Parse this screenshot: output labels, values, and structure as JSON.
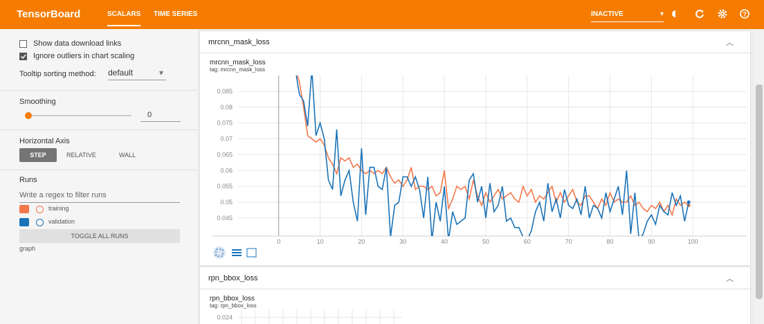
{
  "header": {
    "title": "TensorBoard",
    "tabs": [
      "SCALARS",
      "TIME SERIES"
    ],
    "status": "INACTIVE"
  },
  "sidebar": {
    "options": [
      "Show data download links",
      "Ignore outliers in chart scaling"
    ],
    "tooltip_label": "Tooltip sorting method:",
    "tooltip_value": "default",
    "smoothing_label": "Smoothing",
    "smoothing_value": 0,
    "axis_label": "Horizontal Axis",
    "axis_options": [
      "STEP",
      "RELATIVE",
      "WALL"
    ],
    "runs_label": "Runs",
    "runs_filter": "Write a regex to filter runs",
    "toggle": "TOGGLE ALL RUNS",
    "graph": "graph"
  },
  "chart_data": [
    {
      "type": "line",
      "card": "mrcnn_mask_loss",
      "title": "mrcnn_mask_loss",
      "subtitle": "tag: mrcnn_mask_loss",
      "x": [
        4,
        5,
        6,
        7,
        8,
        9,
        10,
        11,
        12,
        13,
        14,
        15,
        16,
        17,
        18,
        19,
        20,
        21,
        22,
        23,
        24,
        25,
        26,
        27,
        28,
        29,
        30,
        31,
        32,
        33,
        34,
        35,
        36,
        37,
        38,
        39,
        40,
        41,
        42,
        43,
        44,
        45,
        46,
        47,
        48,
        49,
        50,
        51,
        52,
        53,
        54,
        55,
        56,
        57,
        58,
        59,
        60,
        61,
        62,
        63,
        64,
        65,
        66,
        67,
        68,
        69,
        70,
        71,
        72,
        73,
        74,
        75,
        76,
        77,
        78,
        79,
        80,
        81,
        82,
        83,
        84,
        85,
        86,
        87,
        88,
        89,
        90,
        91,
        92,
        93,
        94,
        95,
        96,
        97,
        98,
        99
      ],
      "series": [
        {
          "name": "training",
          "color": "#f4774a",
          "values": [
            0.092,
            0.088,
            0.08,
            0.071,
            0.07,
            0.069,
            0.07,
            0.068,
            0.064,
            0.062,
            0.059,
            0.064,
            0.063,
            0.064,
            0.061,
            0.062,
            0.06,
            0.059,
            0.06,
            0.059,
            0.06,
            0.059,
            0.061,
            0.058,
            0.056,
            0.057,
            0.055,
            0.057,
            0.061,
            0.054,
            0.055,
            0.055,
            0.054,
            0.055,
            0.052,
            0.053,
            0.06,
            0.048,
            0.051,
            0.055,
            0.054,
            0.055,
            0.051,
            0.057,
            0.052,
            0.049,
            0.053,
            0.05,
            0.052,
            0.054,
            0.051,
            0.052,
            0.053,
            0.051,
            0.05,
            0.055,
            0.052,
            0.054,
            0.05,
            0.052,
            0.051,
            0.053,
            0.055,
            0.05,
            0.053,
            0.05,
            0.052,
            0.054,
            0.05,
            0.049,
            0.052,
            0.052,
            0.05,
            0.048,
            0.051,
            0.049,
            0.053,
            0.05,
            0.051,
            0.05,
            0.05,
            0.052,
            0.049,
            0.05,
            0.048,
            0.047,
            0.049,
            0.048,
            0.05,
            0.047,
            0.049,
            0.046,
            0.051,
            0.049,
            0.05,
            0.049
          ]
        },
        {
          "name": "validation",
          "color": "#1a73b8",
          "values": [
            0.092,
            0.084,
            0.082,
            0.074,
            0.092,
            0.071,
            0.075,
            0.07,
            0.057,
            0.054,
            0.073,
            0.052,
            0.057,
            0.06,
            0.05,
            0.044,
            0.067,
            0.046,
            0.061,
            0.061,
            0.055,
            0.054,
            0.061,
            0.039,
            0.049,
            0.05,
            0.058,
            0.058,
            0.055,
            0.058,
            0.054,
            0.045,
            0.058,
            0.038,
            0.05,
            0.044,
            0.055,
            0.038,
            0.047,
            0.043,
            0.044,
            0.045,
            0.057,
            0.059,
            0.05,
            0.055,
            0.045,
            0.056,
            0.047,
            0.049,
            0.055,
            0.044,
            0.045,
            0.042,
            0.042,
            0.039,
            0.038,
            0.041,
            0.047,
            0.05,
            0.044,
            0.056,
            0.047,
            0.051,
            0.045,
            0.054,
            0.049,
            0.048,
            0.051,
            0.046,
            0.055,
            0.045,
            0.049,
            0.048,
            0.045,
            0.053,
            0.047,
            0.051,
            0.055,
            0.046,
            0.06,
            0.04,
            0.053,
            0.038,
            0.04,
            0.044,
            0.046,
            0.043,
            0.049,
            0.047,
            0.046,
            0.053,
            0.049,
            0.052,
            0.044,
            0.05
          ]
        }
      ],
      "xlim": [
        -16,
        113
      ],
      "xticks": [
        0,
        10,
        20,
        30,
        40,
        50,
        60,
        70,
        80,
        90,
        100
      ],
      "ylim": [
        0.0393,
        0.09
      ],
      "yticks": [
        0.045,
        0.05,
        0.055,
        0.06,
        0.065,
        0.07,
        0.075,
        0.08,
        0.085
      ],
      "grid": true
    },
    {
      "type": "line",
      "card": "rpn_bbox_loss",
      "title": "rpn_bbox_loss",
      "subtitle": "tag: rpn_bbox_loss",
      "ylim": [
        0.0215,
        0.0255
      ],
      "yticks": [
        0.024
      ],
      "grid": true
    }
  ]
}
